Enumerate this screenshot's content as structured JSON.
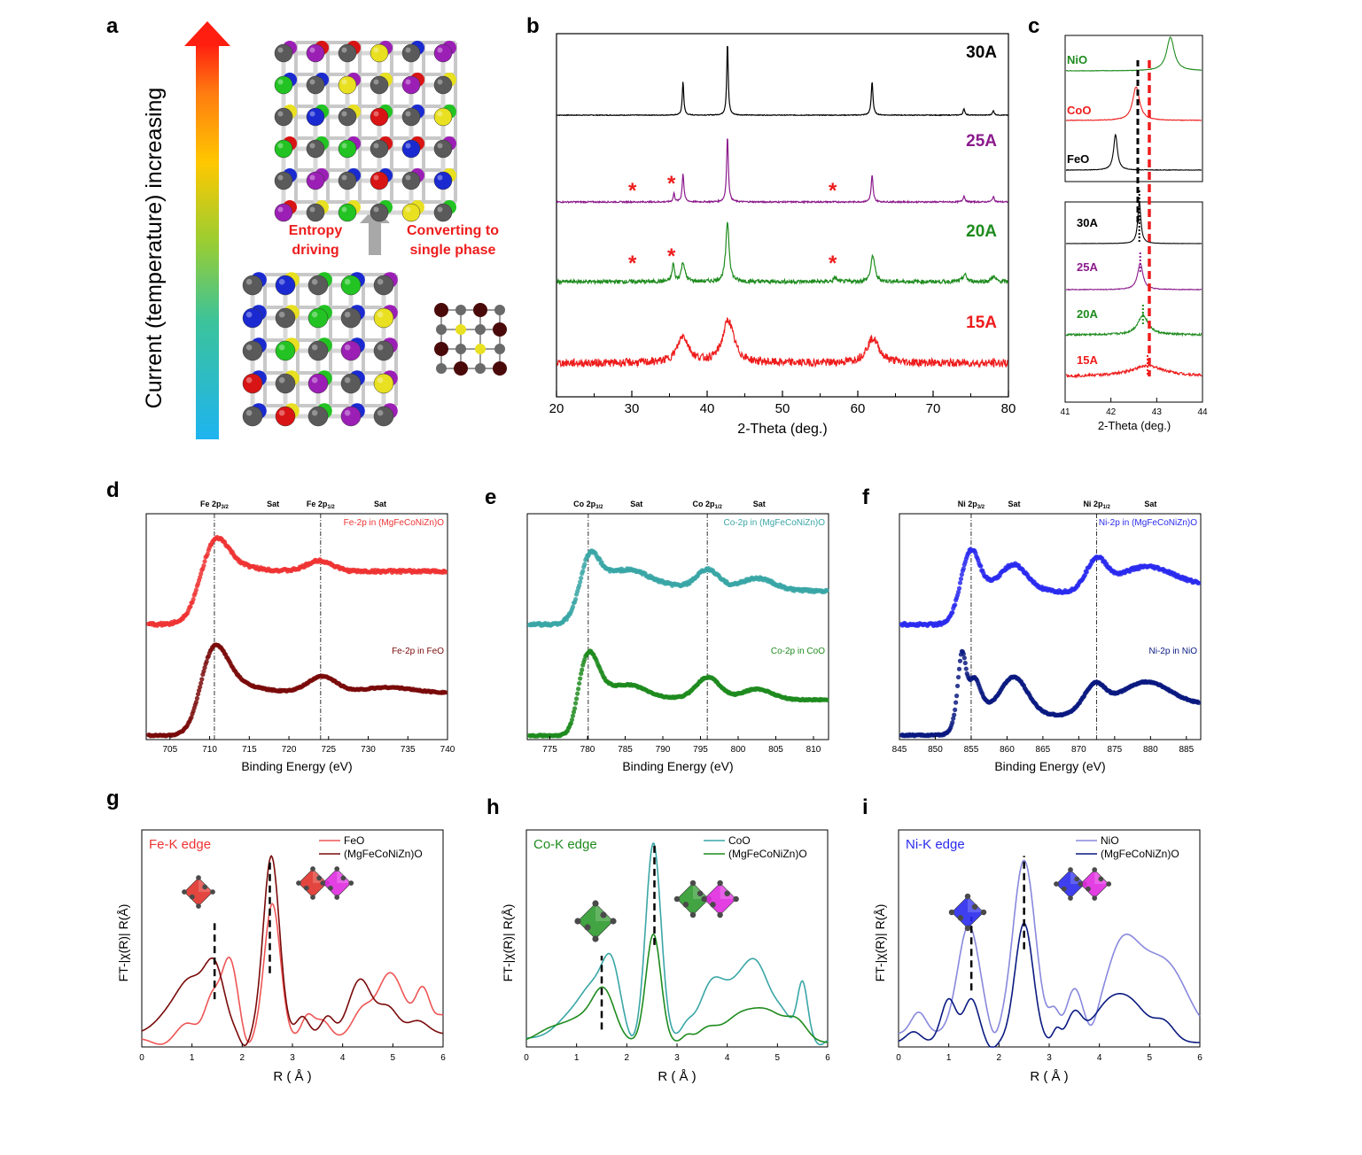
{
  "letters": {
    "a": "a",
    "b": "b",
    "c": "c",
    "d": "d",
    "e": "e",
    "f": "f",
    "g": "g",
    "h": "h",
    "i": "i"
  },
  "panel_a": {
    "arrow_label": "Current (temperature) increasing",
    "left_text": [
      "Entropy",
      "driving"
    ],
    "right_text": [
      "Converting to",
      "single phase"
    ]
  },
  "panel_b": {
    "xlabel": "2-Theta (deg.)",
    "xticks": [
      "20",
      "30",
      "40",
      "50",
      "60",
      "70",
      "80"
    ],
    "series": [
      {
        "label": "30A",
        "color": "#000000"
      },
      {
        "label": "25A",
        "color": "#8B1A8B"
      },
      {
        "label": "20A",
        "color": "#1E8B1E"
      },
      {
        "label": "15A",
        "color": "#EE1C1C"
      }
    ],
    "star": "*"
  },
  "panel_c": {
    "xlabel": "2-Theta (deg.)",
    "xticks": [
      "41",
      "42",
      "43",
      "44"
    ],
    "refs": [
      {
        "label": "NiO",
        "color": "#1E8B1E"
      },
      {
        "label": "CoO",
        "color": "#EE1C1C"
      },
      {
        "label": "FeO",
        "color": "#000000"
      }
    ],
    "samples": [
      {
        "label": "30A",
        "color": "#000000"
      },
      {
        "label": "25A",
        "color": "#8B1A8B"
      },
      {
        "label": "20A",
        "color": "#1E8B1E"
      },
      {
        "label": "15A",
        "color": "#EE1C1C"
      }
    ]
  },
  "panel_d": {
    "xlabel": "Binding Energy (eV)",
    "xticks": [
      "705",
      "710",
      "715",
      "720",
      "725",
      "730",
      "735",
      "740"
    ],
    "peaks": [
      {
        "main": "Fe 2p",
        "sub": "3/2"
      },
      {
        "main": "Sat",
        "sub": ""
      },
      {
        "main": "Fe 2p",
        "sub": "1/2"
      },
      {
        "main": "Sat",
        "sub": ""
      }
    ],
    "top_label": "Fe-2p in (MgFeCoNiZn)O",
    "top_color": "#EE3333",
    "bottom_label": "Fe-2p in FeO",
    "bottom_color": "#7A0A0A"
  },
  "panel_e": {
    "xlabel": "Binding Energy (eV)",
    "xticks": [
      "775",
      "780",
      "785",
      "790",
      "795",
      "800",
      "805",
      "810"
    ],
    "peaks": [
      {
        "main": "Co 2p",
        "sub": "3/2"
      },
      {
        "main": "Sat",
        "sub": ""
      },
      {
        "main": "Co 2p",
        "sub": "1/2"
      },
      {
        "main": "Sat",
        "sub": ""
      }
    ],
    "top_label": "Co-2p in (MgFeCoNiZn)O",
    "top_color": "#3AA6A6",
    "bottom_label": "Co-2p in CoO",
    "bottom_color": "#1E8B1E"
  },
  "panel_f": {
    "xlabel": "Binding Energy (eV)",
    "xticks": [
      "845",
      "850",
      "855",
      "860",
      "865",
      "870",
      "875",
      "880",
      "885"
    ],
    "peaks": [
      {
        "main": "Ni 2p",
        "sub": "3/2"
      },
      {
        "main": "Sat",
        "sub": ""
      },
      {
        "main": "Ni 2p",
        "sub": "1/2"
      },
      {
        "main": "Sat",
        "sub": ""
      }
    ],
    "top_label": "Ni-2p in (MgFeCoNiZn)O",
    "top_color": "#2A2AEE",
    "bottom_label": "Ni-2p in NiO",
    "bottom_color": "#0A1A80"
  },
  "panel_g": {
    "title": "Fe-K edge",
    "title_color": "#EE3333",
    "ylabel": "FT-|χ(R)| R(Å)",
    "xlabel": "R ( Å )",
    "xticks": [
      "0",
      "1",
      "2",
      "3",
      "4",
      "5",
      "6"
    ],
    "legend": [
      {
        "label": "FeO",
        "color": "#EE5555"
      },
      {
        "label": "(MgFeCoNiZn)O",
        "color": "#7A0A0A"
      }
    ]
  },
  "panel_h": {
    "title": "Co-K edge",
    "title_color": "#1E8B1E",
    "ylabel": "FT-|χ(R)| R(Å)",
    "xlabel": "R ( Å )",
    "xticks": [
      "0",
      "1",
      "2",
      "3",
      "4",
      "5",
      "6"
    ],
    "legend": [
      {
        "label": "CoO",
        "color": "#3AA6A6"
      },
      {
        "label": "(MgFeCoNiZn)O",
        "color": "#1E8B1E"
      }
    ]
  },
  "panel_i": {
    "title": "Ni-K edge",
    "title_color": "#2A2AEE",
    "ylabel": "FT-|χ(R)| R(Å)",
    "xlabel": "R ( Å )",
    "xticks": [
      "0",
      "1",
      "2",
      "3",
      "4",
      "5",
      "6"
    ],
    "legend": [
      {
        "label": "NiO",
        "color": "#8888DD"
      },
      {
        "label": "(MgFeCoNiZn)O",
        "color": "#0A1A80"
      }
    ]
  }
}
